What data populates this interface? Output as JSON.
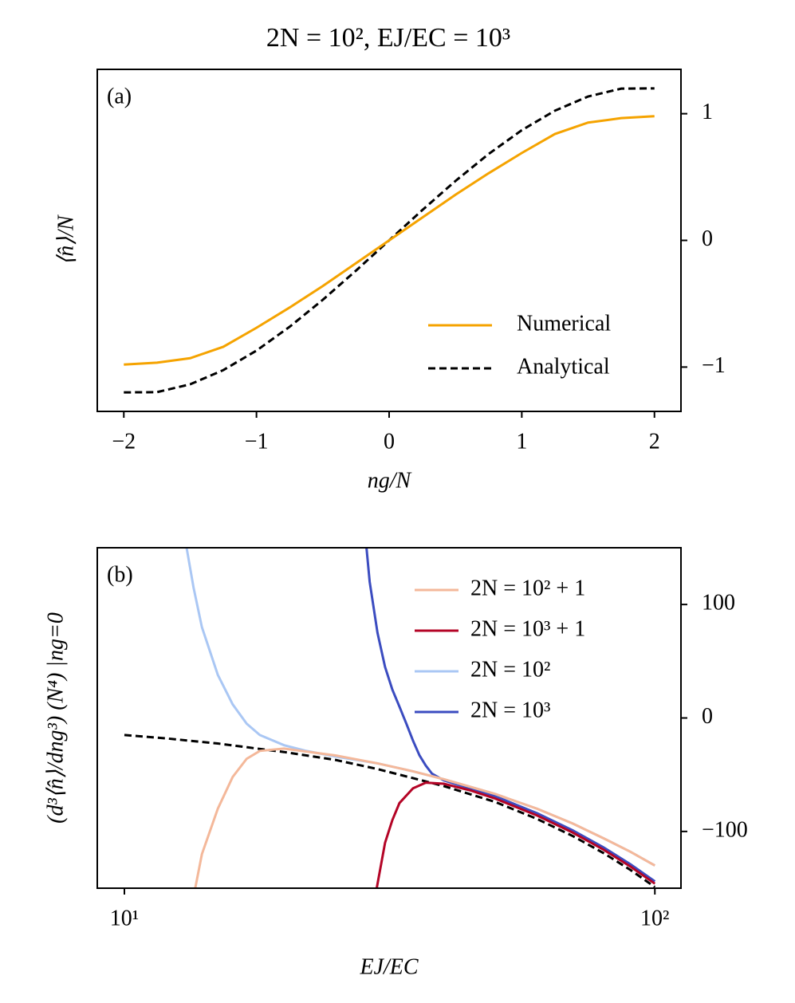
{
  "chart_data": [
    {
      "type": "line",
      "title": "2N = 10²,   EJ/EC = 10³",
      "panel_label": "(a)",
      "x_label": "ng/N",
      "y_label": "⟨n̂⟩/N",
      "xlim": [
        -2.2,
        2.2
      ],
      "ylim": [
        -1.35,
        1.35
      ],
      "xticks": [
        {
          "value": -2,
          "label": "−2"
        },
        {
          "value": -1,
          "label": "−1"
        },
        0,
        1,
        2
      ],
      "yticks": [
        {
          "value": -1,
          "label": "−1"
        },
        0,
        1
      ],
      "legend": "lower right",
      "x": [
        -2,
        -1.75,
        -1.5,
        -1.25,
        -1,
        -0.75,
        -0.5,
        -0.25,
        0,
        0.25,
        0.5,
        0.75,
        1,
        1.25,
        1.5,
        1.75,
        2
      ],
      "series": [
        {
          "name": "Numerical",
          "color": "#f5a300",
          "linestyle": "solid",
          "values": [
            -0.98,
            -0.965,
            -0.93,
            -0.84,
            -0.69,
            -0.53,
            -0.36,
            -0.18,
            0,
            0.18,
            0.36,
            0.53,
            0.69,
            0.84,
            0.93,
            0.965,
            0.98
          ]
        },
        {
          "name": "Analytical",
          "color": "#000000",
          "linestyle": "dashed",
          "values": [
            -1.2,
            -1.198,
            -1.136,
            -1.024,
            -0.87,
            -0.682,
            -0.469,
            -0.239,
            0,
            0.239,
            0.469,
            0.682,
            0.87,
            1.024,
            1.136,
            1.198,
            1.2
          ]
        }
      ]
    },
    {
      "type": "line",
      "panel_label": "(b)",
      "x_label": "EJ/EC",
      "y_label": "(d³⟨n̂⟩/dng³) (N⁴) |ng=0",
      "xscale": "log",
      "xlim": [
        8.89,
        112
      ],
      "ylim": [
        -150,
        150
      ],
      "xticks": [
        {
          "value": 10,
          "label": "10¹"
        },
        {
          "value": 100,
          "label": "10²"
        }
      ],
      "yticks": [
        {
          "value": -100,
          "label": "−100"
        },
        0,
        100
      ],
      "legend": "upper right",
      "series": [
        {
          "name": "2N = 10² + 1",
          "color": "#f4b89a",
          "linestyle": "solid",
          "x": [
            13.6,
            14,
            15,
            16,
            17,
            18,
            20,
            25,
            30,
            35,
            40,
            50,
            60,
            70,
            80,
            90,
            100
          ],
          "values": [
            -150,
            -120,
            -80,
            -52,
            -36,
            -29,
            -27,
            -33,
            -40,
            -47,
            -54,
            -67,
            -80,
            -93,
            -106,
            -118,
            -130
          ]
        },
        {
          "name": "2N = 10³ + 1",
          "color": "#b40426",
          "linestyle": "solid",
          "x": [
            29.9,
            31,
            32,
            33,
            35,
            37,
            40,
            45,
            50,
            60,
            70,
            80,
            90,
            100
          ],
          "values": [
            -150,
            -110,
            -90,
            -75,
            -62,
            -57,
            -58,
            -64,
            -71,
            -86,
            -101,
            -116,
            -131,
            -146
          ]
        },
        {
          "name": "2N = 10²",
          "color": "#aac7f4",
          "linestyle": "solid",
          "x": [
            13.1,
            13.5,
            14,
            15,
            16,
            17,
            18,
            20,
            22,
            25,
            30,
            35,
            40,
            50,
            60,
            70,
            80,
            90,
            100
          ],
          "values": [
            150,
            115,
            80,
            38,
            12,
            -5,
            -15,
            -24,
            -29,
            -34,
            -40,
            -47,
            -54,
            -67,
            -80,
            -93,
            -106,
            -118,
            -130
          ]
        },
        {
          "name": "2N = 10³",
          "color": "#3b4cc0",
          "linestyle": "solid",
          "x": [
            28.6,
            29,
            30,
            31,
            32,
            33,
            34,
            35,
            36,
            37,
            38,
            40,
            50,
            60,
            70,
            80,
            90,
            100
          ],
          "values": [
            150,
            120,
            75,
            45,
            25,
            10,
            -5,
            -20,
            -33,
            -42,
            -49,
            -55,
            -69,
            -84,
            -99,
            -114,
            -129,
            -144
          ]
        },
        {
          "color": "#000000",
          "linestyle": "dashed",
          "x": [
            10,
            12,
            15,
            20,
            25,
            30,
            40,
            50,
            60,
            70,
            80,
            90,
            100
          ],
          "values": [
            -15,
            -18,
            -22.5,
            -30,
            -37,
            -45,
            -60,
            -74,
            -89,
            -104,
            -119,
            -134,
            -149
          ]
        }
      ]
    }
  ]
}
